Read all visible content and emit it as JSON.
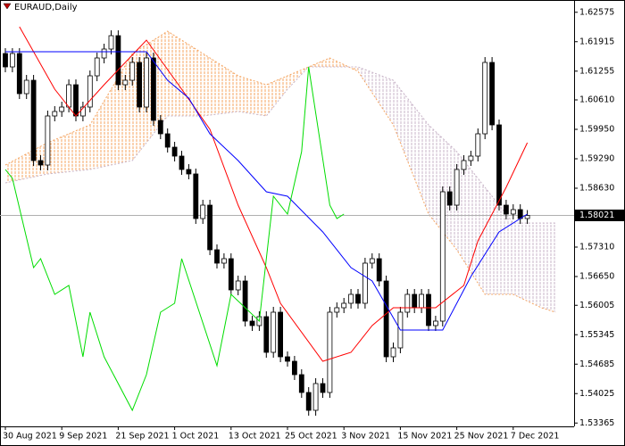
{
  "chart_data": {
    "type": "candlestick",
    "title": "EURAUD,Daily",
    "categories": [
      "30 Aug 2021",
      null,
      null,
      null,
      null,
      null,
      null,
      null,
      "9 Sep 2021",
      null,
      null,
      null,
      null,
      null,
      null,
      null,
      "21 Sep 2021",
      null,
      null,
      null,
      null,
      null,
      null,
      null,
      "1 Oct 2021",
      null,
      null,
      null,
      null,
      null,
      null,
      null,
      "13 Oct 2021",
      null,
      null,
      null,
      null,
      null,
      null,
      null,
      "25 Oct 2021",
      null,
      null,
      null,
      null,
      null,
      null,
      null,
      "3 Nov 2021",
      null,
      null,
      null,
      null,
      null,
      null,
      null,
      "15 Nov 2021",
      null,
      null,
      null,
      null,
      null,
      null,
      null,
      "25 Nov 2021",
      null,
      null,
      null,
      null,
      null,
      null,
      null,
      "7 Dec 2021",
      null,
      null
    ],
    "open": [
      1.6165,
      1.6135,
      1.6165,
      1.6075,
      1.6105,
      1.5925,
      1.5915,
      1.6025,
      1.6035,
      1.6045,
      1.6095,
      1.6025,
      1.6045,
      1.6115,
      1.6155,
      1.6175,
      1.6205,
      1.6095,
      1.6105,
      1.6145,
      1.6045,
      1.6155,
      1.6015,
      1.5985,
      1.5955,
      1.5935,
      1.5905,
      1.5895,
      1.5795,
      1.5825,
      1.5725,
      1.5695,
      1.5705,
      1.5635,
      1.5655,
      1.5565,
      1.5555,
      1.5575,
      1.5495,
      1.5585,
      1.5485,
      1.5475,
      1.5445,
      1.5405,
      1.5365,
      1.5425,
      1.5405,
      1.5585,
      1.5595,
      1.5605,
      1.5625,
      1.5605,
      1.5695,
      1.5705,
      1.5655,
      1.5485,
      1.5505,
      1.5585,
      1.5625,
      1.5595,
      1.5625,
      1.5555,
      1.5565,
      1.5855,
      1.5825,
      1.5905,
      1.5925,
      1.5935,
      1.5985,
      1.6145,
      1.6005,
      1.5825,
      1.5805,
      1.5815,
      1.5795
    ],
    "high": [
      1.6177,
      1.6177,
      1.6177,
      1.6117,
      1.6117,
      1.5937,
      1.6037,
      1.6047,
      1.6057,
      1.6107,
      1.6107,
      1.6057,
      1.6127,
      1.6167,
      1.6187,
      1.6217,
      1.6217,
      1.6117,
      1.6157,
      1.6157,
      1.6167,
      1.6167,
      1.6027,
      1.5997,
      1.5967,
      1.5947,
      1.5917,
      1.5907,
      1.5837,
      1.5837,
      1.5737,
      1.5717,
      1.5717,
      1.5667,
      1.5667,
      1.5577,
      1.5587,
      1.5587,
      1.5597,
      1.5597,
      1.5497,
      1.5487,
      1.5457,
      1.5417,
      1.5437,
      1.5437,
      1.5597,
      1.5607,
      1.5617,
      1.5637,
      1.5637,
      1.5707,
      1.5717,
      1.5717,
      1.5667,
      1.5517,
      1.5597,
      1.5637,
      1.5637,
      1.5637,
      1.5637,
      1.5577,
      1.5867,
      1.5867,
      1.5917,
      1.5937,
      1.5947,
      1.5997,
      1.6157,
      1.6157,
      1.6017,
      1.5837,
      1.5827,
      1.5827,
      1.5814
    ],
    "low": [
      1.6123,
      1.6123,
      1.6063,
      1.6063,
      1.5913,
      1.5903,
      1.5903,
      1.6013,
      1.6023,
      1.6033,
      1.6013,
      1.6013,
      1.6033,
      1.6103,
      1.6143,
      1.6163,
      1.6083,
      1.6083,
      1.6093,
      1.6033,
      1.6033,
      1.6003,
      1.5973,
      1.5943,
      1.5923,
      1.5893,
      1.5883,
      1.5783,
      1.5783,
      1.5713,
      1.5683,
      1.5683,
      1.5623,
      1.5623,
      1.5553,
      1.5543,
      1.5543,
      1.5483,
      1.5483,
      1.5473,
      1.5463,
      1.5433,
      1.5393,
      1.5353,
      1.5353,
      1.5393,
      1.5393,
      1.5573,
      1.5583,
      1.5593,
      1.5593,
      1.5593,
      1.5683,
      1.5643,
      1.5473,
      1.5473,
      1.5493,
      1.5573,
      1.5583,
      1.5583,
      1.5543,
      1.5543,
      1.5553,
      1.5813,
      1.5813,
      1.5893,
      1.5913,
      1.5923,
      1.5973,
      1.5993,
      1.5813,
      1.5793,
      1.5793,
      1.5783,
      1.5783
    ],
    "close": [
      1.6135,
      1.6165,
      1.6075,
      1.6105,
      1.5925,
      1.5915,
      1.6025,
      1.6035,
      1.6045,
      1.6095,
      1.6025,
      1.6045,
      1.6115,
      1.6155,
      1.6175,
      1.6205,
      1.6095,
      1.6105,
      1.6145,
      1.6045,
      1.6155,
      1.6015,
      1.5985,
      1.5955,
      1.5935,
      1.5905,
      1.5895,
      1.5795,
      1.5825,
      1.5725,
      1.5695,
      1.5705,
      1.5635,
      1.5655,
      1.5565,
      1.5555,
      1.5575,
      1.5495,
      1.5585,
      1.5485,
      1.5475,
      1.5445,
      1.5405,
      1.5365,
      1.5425,
      1.5405,
      1.5585,
      1.5595,
      1.5605,
      1.5625,
      1.5605,
      1.5695,
      1.5705,
      1.5655,
      1.5485,
      1.5505,
      1.5585,
      1.5625,
      1.5595,
      1.5625,
      1.5555,
      1.5565,
      1.5855,
      1.5825,
      1.5905,
      1.5925,
      1.5935,
      1.5985,
      1.6145,
      1.6005,
      1.5825,
      1.5805,
      1.5815,
      1.5795,
      1.5802
    ],
    "up_color": "#ffffff",
    "down_color": "#000000",
    "ylim": [
      1.5329,
      1.6285
    ],
    "yticks": [
      1.62575,
      1.61915,
      1.61255,
      {
        "value": 1.6061,
        "label": "1.60610"
      },
      {
        "value": 1.5995,
        "label": "1.59950"
      },
      {
        "value": 1.5929,
        "label": "1.59290"
      },
      {
        "value": 1.5863,
        "label": "1.58630"
      },
      {
        "value": 1.5731,
        "label": "1.57310"
      },
      {
        "value": 1.5665,
        "label": "1.56650"
      },
      1.56005,
      1.55345,
      1.54685,
      1.54025,
      1.53365
    ],
    "current_price": 1.58021,
    "cloud": {
      "x": [
        0,
        6,
        12,
        18,
        23,
        28,
        33,
        37,
        40,
        43,
        46,
        50,
        55,
        60,
        64,
        68,
        72,
        76,
        78
      ],
      "span_a": [
        1.5915,
        1.5965,
        1.6005,
        1.6165,
        1.6215,
        1.6165,
        1.6115,
        1.6095,
        1.6115,
        1.6135,
        1.6155,
        1.6125,
        1.6005,
        1.5805,
        1.5725,
        1.5625,
        1.5625,
        1.5595,
        1.5585
      ],
      "span_b": [
        1.5875,
        1.5895,
        1.5905,
        1.5925,
        1.6025,
        1.6025,
        1.6035,
        1.6025,
        1.6085,
        1.6135,
        1.6135,
        1.6135,
        1.6105,
        1.6005,
        1.5945,
        1.5865,
        1.5785,
        1.5785,
        1.5785
      ],
      "span_a_color": "#f4a460",
      "span_b_color": "#c8b4c8"
    },
    "lines": [
      {
        "x": [
          2,
          7,
          10,
          14,
          20,
          25,
          29,
          33,
          37,
          39,
          45,
          49,
          52,
          55,
          61,
          65,
          67,
          71,
          74
        ],
        "values": [
          1.6225,
          1.6085,
          1.6025,
          1.6095,
          1.6195,
          1.6085,
          1.5995,
          1.5825,
          1.5685,
          1.5605,
          1.5475,
          1.5495,
          1.5555,
          1.5595,
          1.5595,
          1.5645,
          1.5745,
          1.5865,
          1.5965
        ],
        "color": "#ff0000"
      },
      {
        "x": [
          0,
          20,
          23,
          26,
          29,
          33,
          37,
          40,
          45,
          49,
          52,
          56,
          62,
          66,
          70,
          74
        ],
        "values": [
          1.6169,
          1.6169,
          1.6105,
          1.6065,
          1.5985,
          1.5925,
          1.5855,
          1.5845,
          1.5765,
          1.5685,
          1.5655,
          1.5545,
          1.5545,
          1.5665,
          1.5765,
          1.5805
        ],
        "color": "#0000ff"
      },
      {
        "x": [
          0,
          1,
          4,
          5,
          7,
          9,
          11,
          12,
          14,
          18,
          20,
          22,
          24,
          25,
          30,
          32,
          36,
          38,
          40,
          42,
          43,
          46,
          47,
          48
        ],
        "values": [
          1.5905,
          1.5885,
          1.5685,
          1.5705,
          1.5625,
          1.5645,
          1.5485,
          1.5585,
          1.5485,
          1.5365,
          1.5445,
          1.5585,
          1.5605,
          1.5705,
          1.5465,
          1.5625,
          1.5565,
          1.5845,
          1.5805,
          1.5945,
          1.6135,
          1.5825,
          1.5795,
          1.5805
        ],
        "color": "#00dd00"
      }
    ]
  }
}
